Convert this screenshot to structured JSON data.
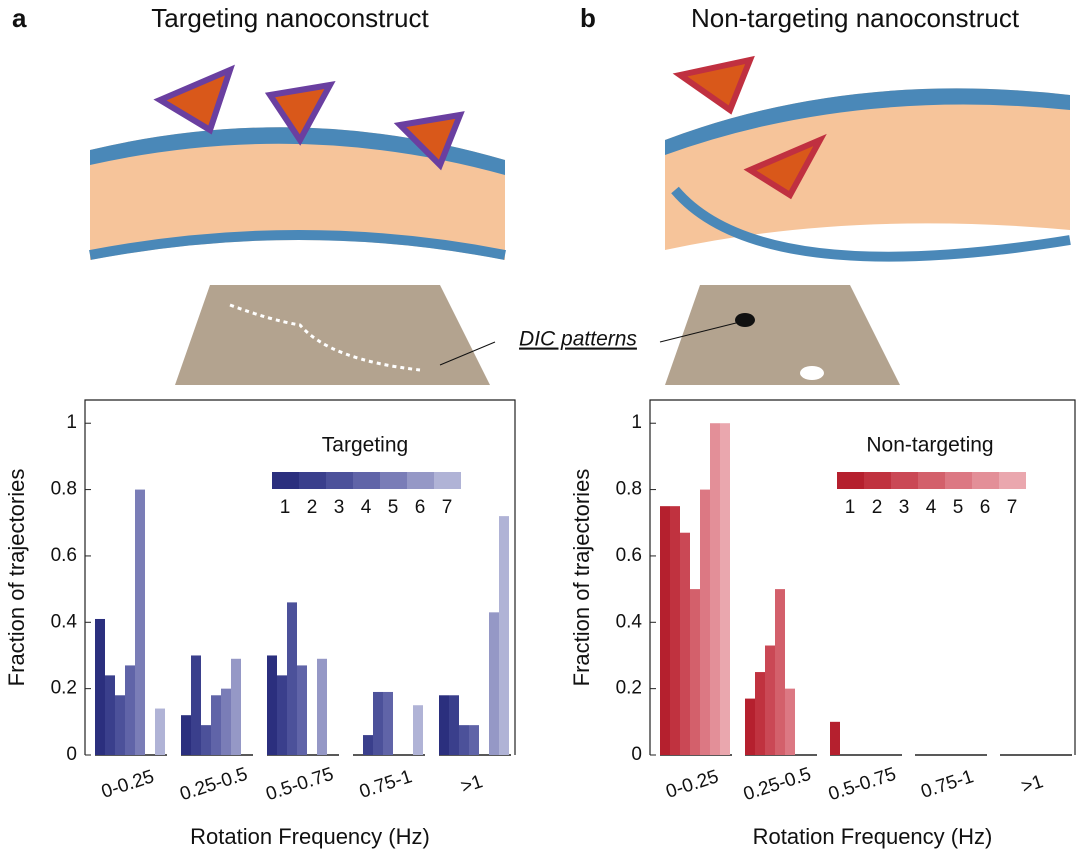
{
  "panels": [
    {
      "label": "a",
      "title": "Targeting nanoconstruct"
    },
    {
      "label": "b",
      "title": "Non-targeting nanoconstruct"
    }
  ],
  "annotation": "DIC patterns",
  "chart_data": [
    {
      "type": "bar",
      "ylabel": "Fraction of trajectories",
      "xlabel": "Rotation Frequency (Hz)",
      "legend_title": "Targeting",
      "categories": [
        "0-0.25",
        "0.25-0.5",
        "0.5-0.75",
        "0.75-1",
        ">1"
      ],
      "ylim": [
        0,
        1.07
      ],
      "yticks": [
        0,
        0.2,
        0.4,
        0.6,
        0.8,
        1
      ],
      "series": [
        {
          "name": "1",
          "color": "#2b2f7e",
          "values": [
            0.41,
            0.12,
            0.3,
            0,
            0.18
          ]
        },
        {
          "name": "2",
          "color": "#3a3f8c",
          "values": [
            0.24,
            0.3,
            0.24,
            0.06,
            0.18
          ]
        },
        {
          "name": "3",
          "color": "#4c519a",
          "values": [
            0.18,
            0.09,
            0.46,
            0.19,
            0.09
          ]
        },
        {
          "name": "4",
          "color": "#6064a8",
          "values": [
            0.27,
            0.18,
            0.27,
            0.19,
            0.09
          ]
        },
        {
          "name": "5",
          "color": "#7a7db7",
          "values": [
            0.8,
            0.2,
            0,
            0,
            0
          ]
        },
        {
          "name": "6",
          "color": "#9598c6",
          "values": [
            0,
            0.29,
            0.29,
            0,
            0.43
          ]
        },
        {
          "name": "7",
          "color": "#b0b3d6",
          "values": [
            0.14,
            0,
            0,
            0.15,
            0.72
          ]
        }
      ]
    },
    {
      "type": "bar",
      "ylabel": "Fraction of trajectories",
      "xlabel": "Rotation Frequency (Hz)",
      "legend_title": "Non-targeting",
      "categories": [
        "0-0.25",
        "0.25-0.5",
        "0.5-0.75",
        "0.75-1",
        ">1"
      ],
      "ylim": [
        0,
        1.07
      ],
      "yticks": [
        0,
        0.2,
        0.4,
        0.6,
        0.8,
        1
      ],
      "series": [
        {
          "name": "1",
          "color": "#b5202e",
          "values": [
            0.75,
            0.17,
            0.1,
            0,
            0
          ]
        },
        {
          "name": "2",
          "color": "#c0323f",
          "values": [
            0.75,
            0.25,
            0,
            0,
            0
          ]
        },
        {
          "name": "3",
          "color": "#ca4855",
          "values": [
            0.67,
            0.33,
            0,
            0,
            0
          ]
        },
        {
          "name": "4",
          "color": "#d3606b",
          "values": [
            0.5,
            0.5,
            0,
            0,
            0
          ]
        },
        {
          "name": "5",
          "color": "#dc7883",
          "values": [
            0.8,
            0.2,
            0,
            0,
            0
          ]
        },
        {
          "name": "6",
          "color": "#e38f98",
          "values": [
            1,
            0,
            0,
            0,
            0
          ]
        },
        {
          "name": "7",
          "color": "#eaa7ae",
          "values": [
            1,
            0,
            0,
            0,
            0
          ]
        }
      ]
    }
  ]
}
